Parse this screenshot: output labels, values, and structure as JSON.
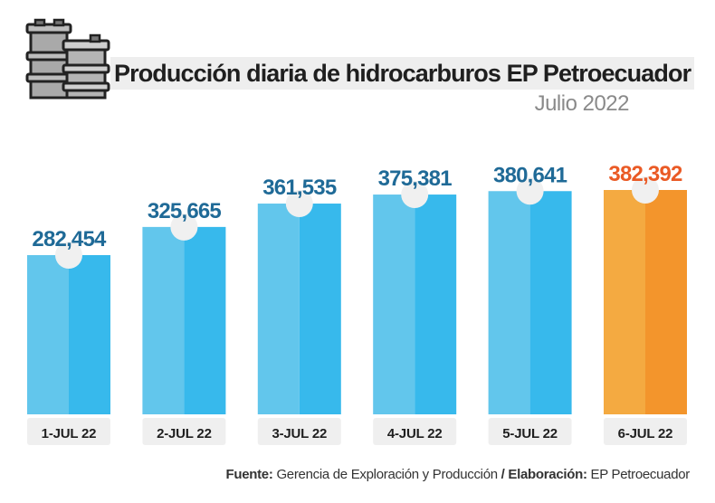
{
  "header": {
    "title": "Producción diaria de hidrocarburos EP Petroecuador",
    "subtitle": "Julio 2022"
  },
  "footer": {
    "source_label": "Fuente:",
    "source_value": "Gerencia de Exploración y Producción",
    "separator": "/",
    "credit_label": "Elaboración:",
    "credit_value": "EP Petroecuador"
  },
  "icons": {
    "header_icon": "oil-barrels-icon"
  },
  "colors": {
    "bar_blue_light": "#62c6ec",
    "bar_blue_dark": "#37b9ec",
    "bar_orange_light": "#f4aa41",
    "bar_orange_dark": "#f3952c",
    "value_blue": "#1f6a97",
    "value_orange": "#ea5a25"
  },
  "chart_data": {
    "type": "bar",
    "title": "Producción diaria de hidrocarburos EP Petroecuador",
    "subtitle": "Julio 2022",
    "categories": [
      "1-JUL 22",
      "2-JUL 22",
      "3-JUL 22",
      "4-JUL 22",
      "5-JUL 22",
      "6-JUL 22"
    ],
    "values": [
      282454,
      325665,
      361535,
      375381,
      380641,
      382392
    ],
    "value_labels": [
      "282,454",
      "325,665",
      "361,535",
      "375,381",
      "380,641",
      "382,392"
    ],
    "highlighted_category": "6-JUL 22",
    "xlabel": "",
    "ylabel": "",
    "grid": false,
    "legend": "none"
  }
}
